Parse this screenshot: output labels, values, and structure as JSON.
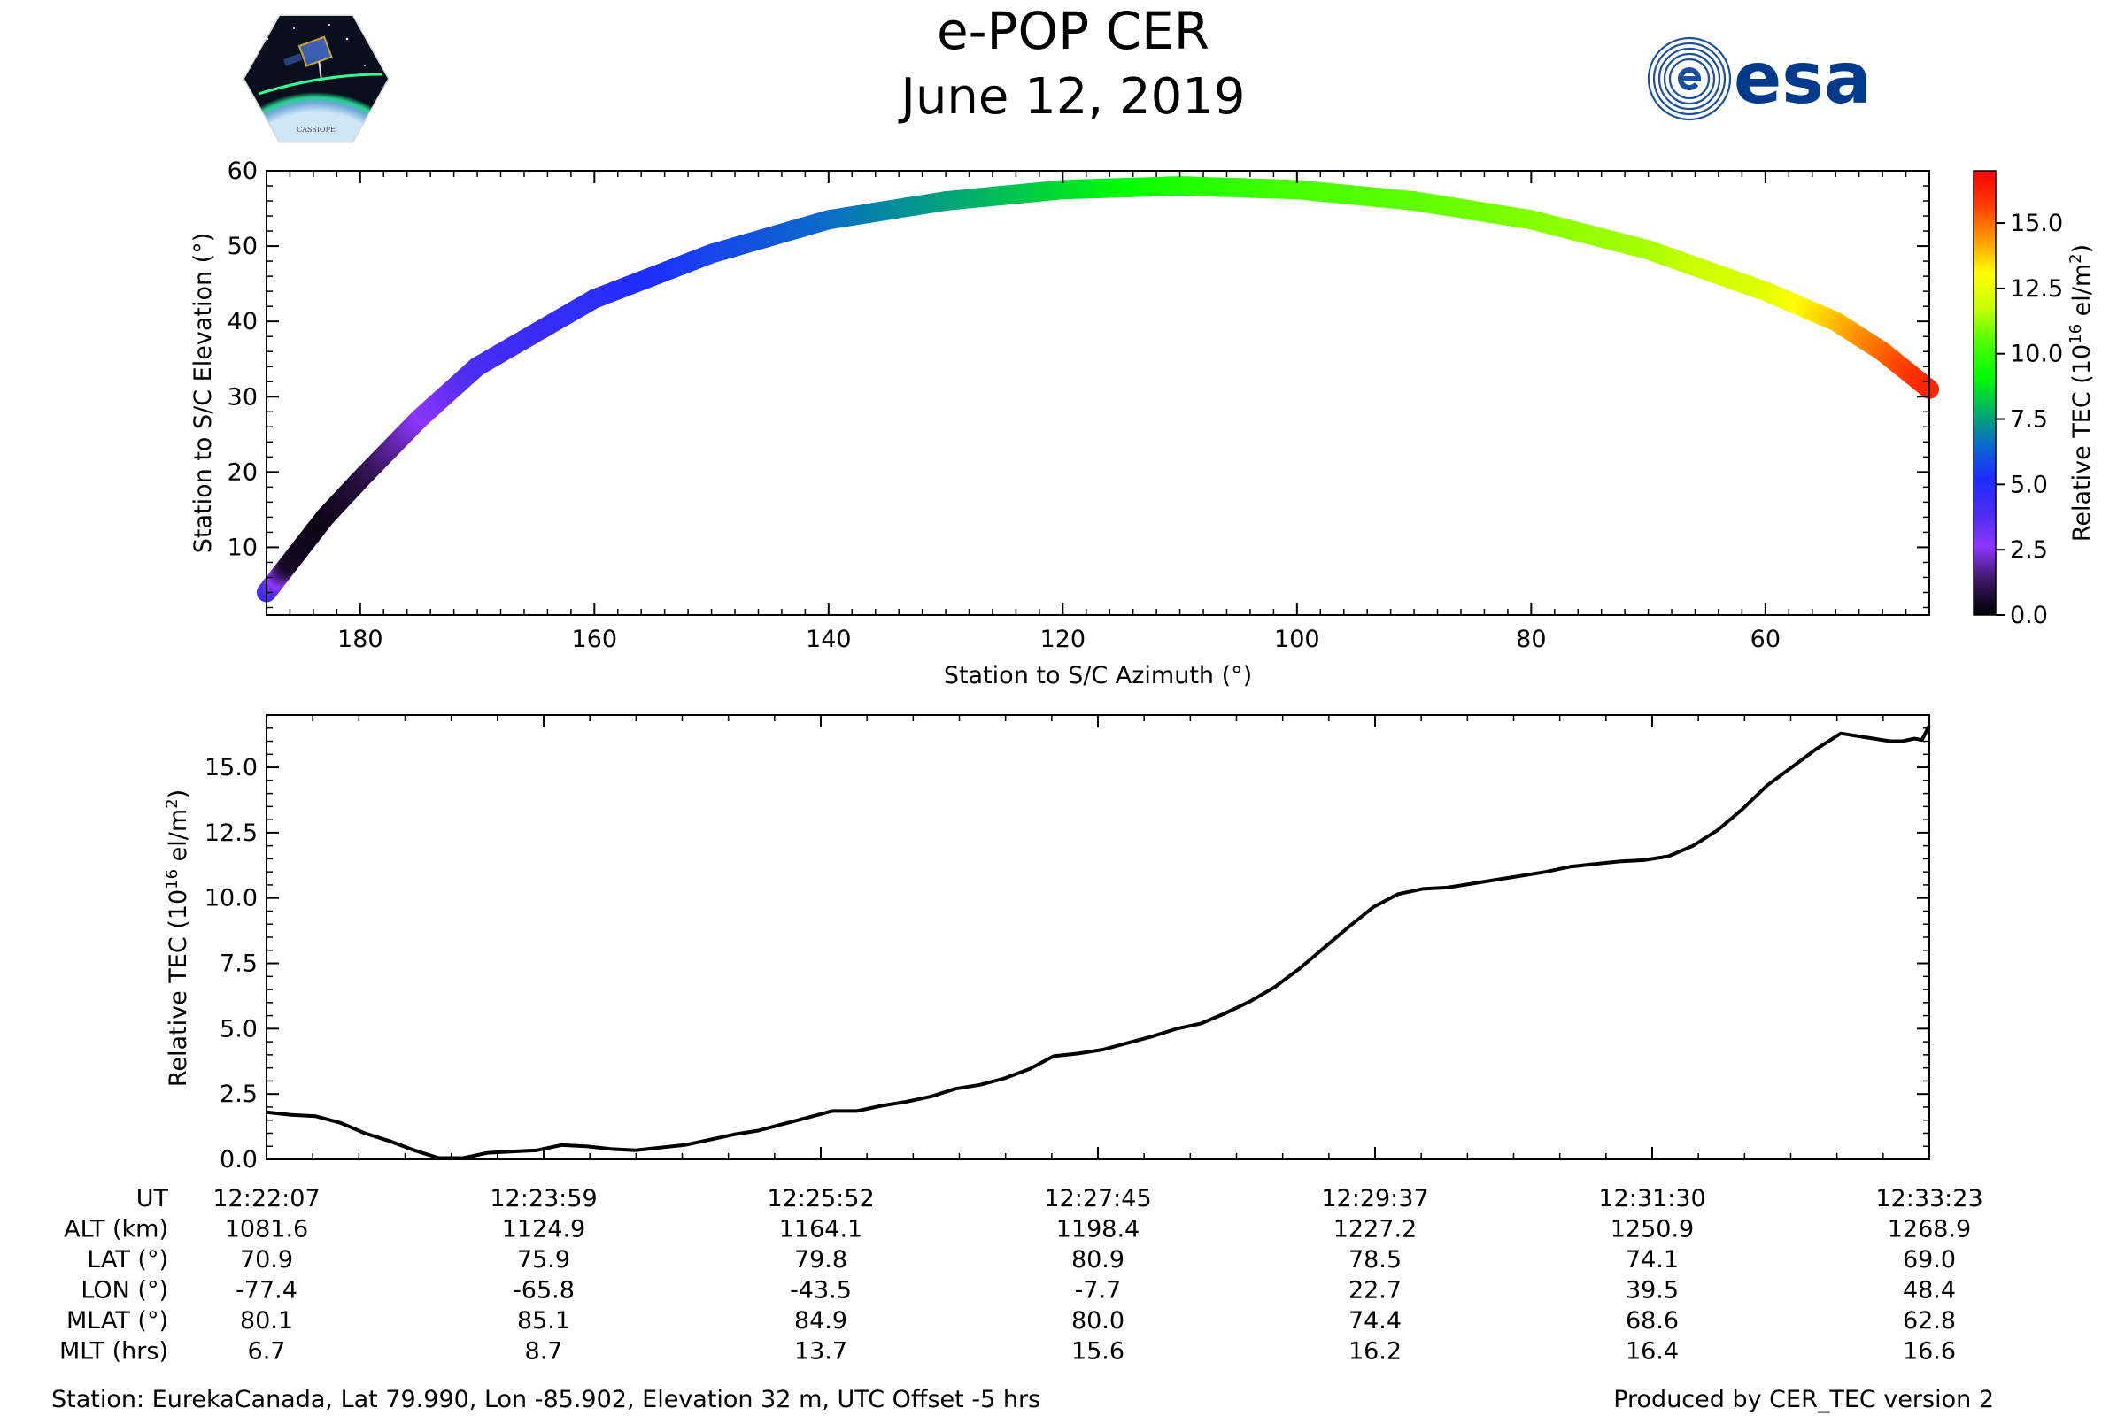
{
  "header": {
    "title": "e-POP CER",
    "date": "June 12, 2019",
    "logo_left": "CASSIOPE",
    "logo_right": "esa"
  },
  "colors": {
    "line": "#000000",
    "esa_blue": "#003a8c",
    "colormap": [
      "#000000",
      "#3a1660",
      "#8c37ff",
      "#4b2cf0",
      "#1e2dff",
      "#0a6cc8",
      "#00b464",
      "#00ff00",
      "#50ff00",
      "#c8ff00",
      "#ffff00",
      "#ff9a00",
      "#ff3c00",
      "#ff0000"
    ]
  },
  "chart_data": [
    {
      "type": "scatter",
      "name": "elevation-vs-azimuth",
      "xlabel": "Station to S/C Azimuth (°)",
      "ylabel": "Station to S/C Elevation (°)",
      "xlim": [
        188,
        46
      ],
      "ylim": [
        1,
        60
      ],
      "x_reversed": true,
      "xticks": [
        180,
        160,
        140,
        120,
        100,
        80,
        60
      ],
      "yticks": [
        10,
        20,
        30,
        40,
        50
      ],
      "yticklabels_extra": [
        60
      ],
      "colorbar": {
        "label": "Relative TEC (10^16 el/m²)",
        "range": [
          0,
          17
        ],
        "ticks": [
          "0.0",
          "2.5",
          "5.0",
          "7.5",
          "10.0",
          "12.5",
          "15.0"
        ]
      },
      "points": [
        {
          "az": 188,
          "el": 4,
          "tec": 4.5
        },
        {
          "az": 186,
          "el": 8,
          "tec": 0.5
        },
        {
          "az": 183,
          "el": 14,
          "tec": 0.3
        },
        {
          "az": 180,
          "el": 19,
          "tec": 0.8
        },
        {
          "az": 175,
          "el": 27,
          "tec": 2.5
        },
        {
          "az": 170,
          "el": 34,
          "tec": 4.0
        },
        {
          "az": 160,
          "el": 43,
          "tec": 4.8
        },
        {
          "az": 150,
          "el": 49,
          "tec": 5.7
        },
        {
          "az": 140,
          "el": 53.5,
          "tec": 6.5
        },
        {
          "az": 130,
          "el": 56,
          "tec": 7.5
        },
        {
          "az": 120,
          "el": 57.5,
          "tec": 8.5
        },
        {
          "az": 110,
          "el": 58,
          "tec": 9.6
        },
        {
          "az": 100,
          "el": 57.5,
          "tec": 10.3
        },
        {
          "az": 90,
          "el": 56,
          "tec": 10.6
        },
        {
          "az": 80,
          "el": 53.5,
          "tec": 11.0
        },
        {
          "az": 70,
          "el": 49.5,
          "tec": 11.4
        },
        {
          "az": 60,
          "el": 44,
          "tec": 12.3
        },
        {
          "az": 54,
          "el": 40,
          "tec": 13.8
        },
        {
          "az": 50,
          "el": 36,
          "tec": 15.0
        },
        {
          "az": 46,
          "el": 31,
          "tec": 16.2
        }
      ]
    },
    {
      "type": "line",
      "name": "tec-vs-time",
      "ylabel": "Relative TEC (10^16 el/m²)",
      "ylim": [
        0,
        17
      ],
      "xlim": [
        0,
        676
      ],
      "yticks": [
        "0.0",
        "2.5",
        "5.0",
        "7.5",
        "10.0",
        "12.5",
        "15.0"
      ],
      "series": [
        {
          "x": [
            0,
            10,
            20,
            30,
            40,
            50,
            60,
            70,
            80,
            90,
            100,
            110,
            120,
            130,
            140,
            150,
            160,
            170,
            180,
            190,
            200,
            210,
            220,
            230,
            240,
            250,
            260,
            270,
            280,
            290,
            300,
            310,
            320,
            330,
            340,
            350,
            360,
            370,
            380,
            390,
            400,
            410,
            420,
            430,
            440,
            450,
            460,
            470,
            480,
            490,
            500,
            510,
            520,
            530,
            540,
            550,
            560,
            570,
            580,
            590,
            600,
            610,
            620,
            630,
            640,
            650,
            660,
            665,
            670,
            673,
            676
          ],
          "y": [
            1.8,
            1.7,
            1.65,
            1.4,
            1.0,
            0.7,
            0.35,
            0.05,
            0.05,
            0.25,
            0.3,
            0.35,
            0.55,
            0.5,
            0.4,
            0.35,
            0.45,
            0.55,
            0.75,
            0.95,
            1.1,
            1.35,
            1.6,
            1.85,
            1.85,
            2.05,
            2.2,
            2.4,
            2.7,
            2.85,
            3.1,
            3.45,
            3.95,
            4.05,
            4.2,
            4.45,
            4.7,
            5.0,
            5.2,
            5.6,
            6.05,
            6.6,
            7.3,
            8.1,
            8.9,
            9.65,
            10.15,
            10.35,
            10.4,
            10.55,
            10.7,
            10.85,
            11.0,
            11.2,
            11.3,
            11.4,
            11.45,
            11.6,
            12.0,
            12.6,
            13.4,
            14.3,
            15.0,
            15.7,
            16.3,
            16.15,
            16.0,
            16.0,
            16.1,
            16.05,
            16.6
          ]
        }
      ]
    }
  ],
  "table": {
    "row_labels": [
      "UT",
      "ALT (km)",
      "LAT (°)",
      "LON (°)",
      "MLAT (°)",
      "MLT (hrs)"
    ],
    "columns": [
      [
        "12:22:07",
        "1081.6",
        "70.9",
        "-77.4",
        "80.1",
        "6.7"
      ],
      [
        "12:23:59",
        "1124.9",
        "75.9",
        "-65.8",
        "85.1",
        "8.7"
      ],
      [
        "12:25:52",
        "1164.1",
        "79.8",
        "-43.5",
        "84.9",
        "13.7"
      ],
      [
        "12:27:45",
        "1198.4",
        "80.9",
        "-7.7",
        "80.0",
        "15.6"
      ],
      [
        "12:29:37",
        "1227.2",
        "78.5",
        "22.7",
        "74.4",
        "16.2"
      ],
      [
        "12:31:30",
        "1250.9",
        "74.1",
        "39.5",
        "68.6",
        "16.4"
      ],
      [
        "12:33:23",
        "1268.9",
        "69.0",
        "48.4",
        "62.8",
        "16.6"
      ]
    ]
  },
  "footer": {
    "station": "Station: EurekaCanada, Lat 79.990, Lon -85.902, Elevation 32 m, UTC Offset -5 hrs",
    "produced": "Produced by CER_TEC version 2"
  }
}
